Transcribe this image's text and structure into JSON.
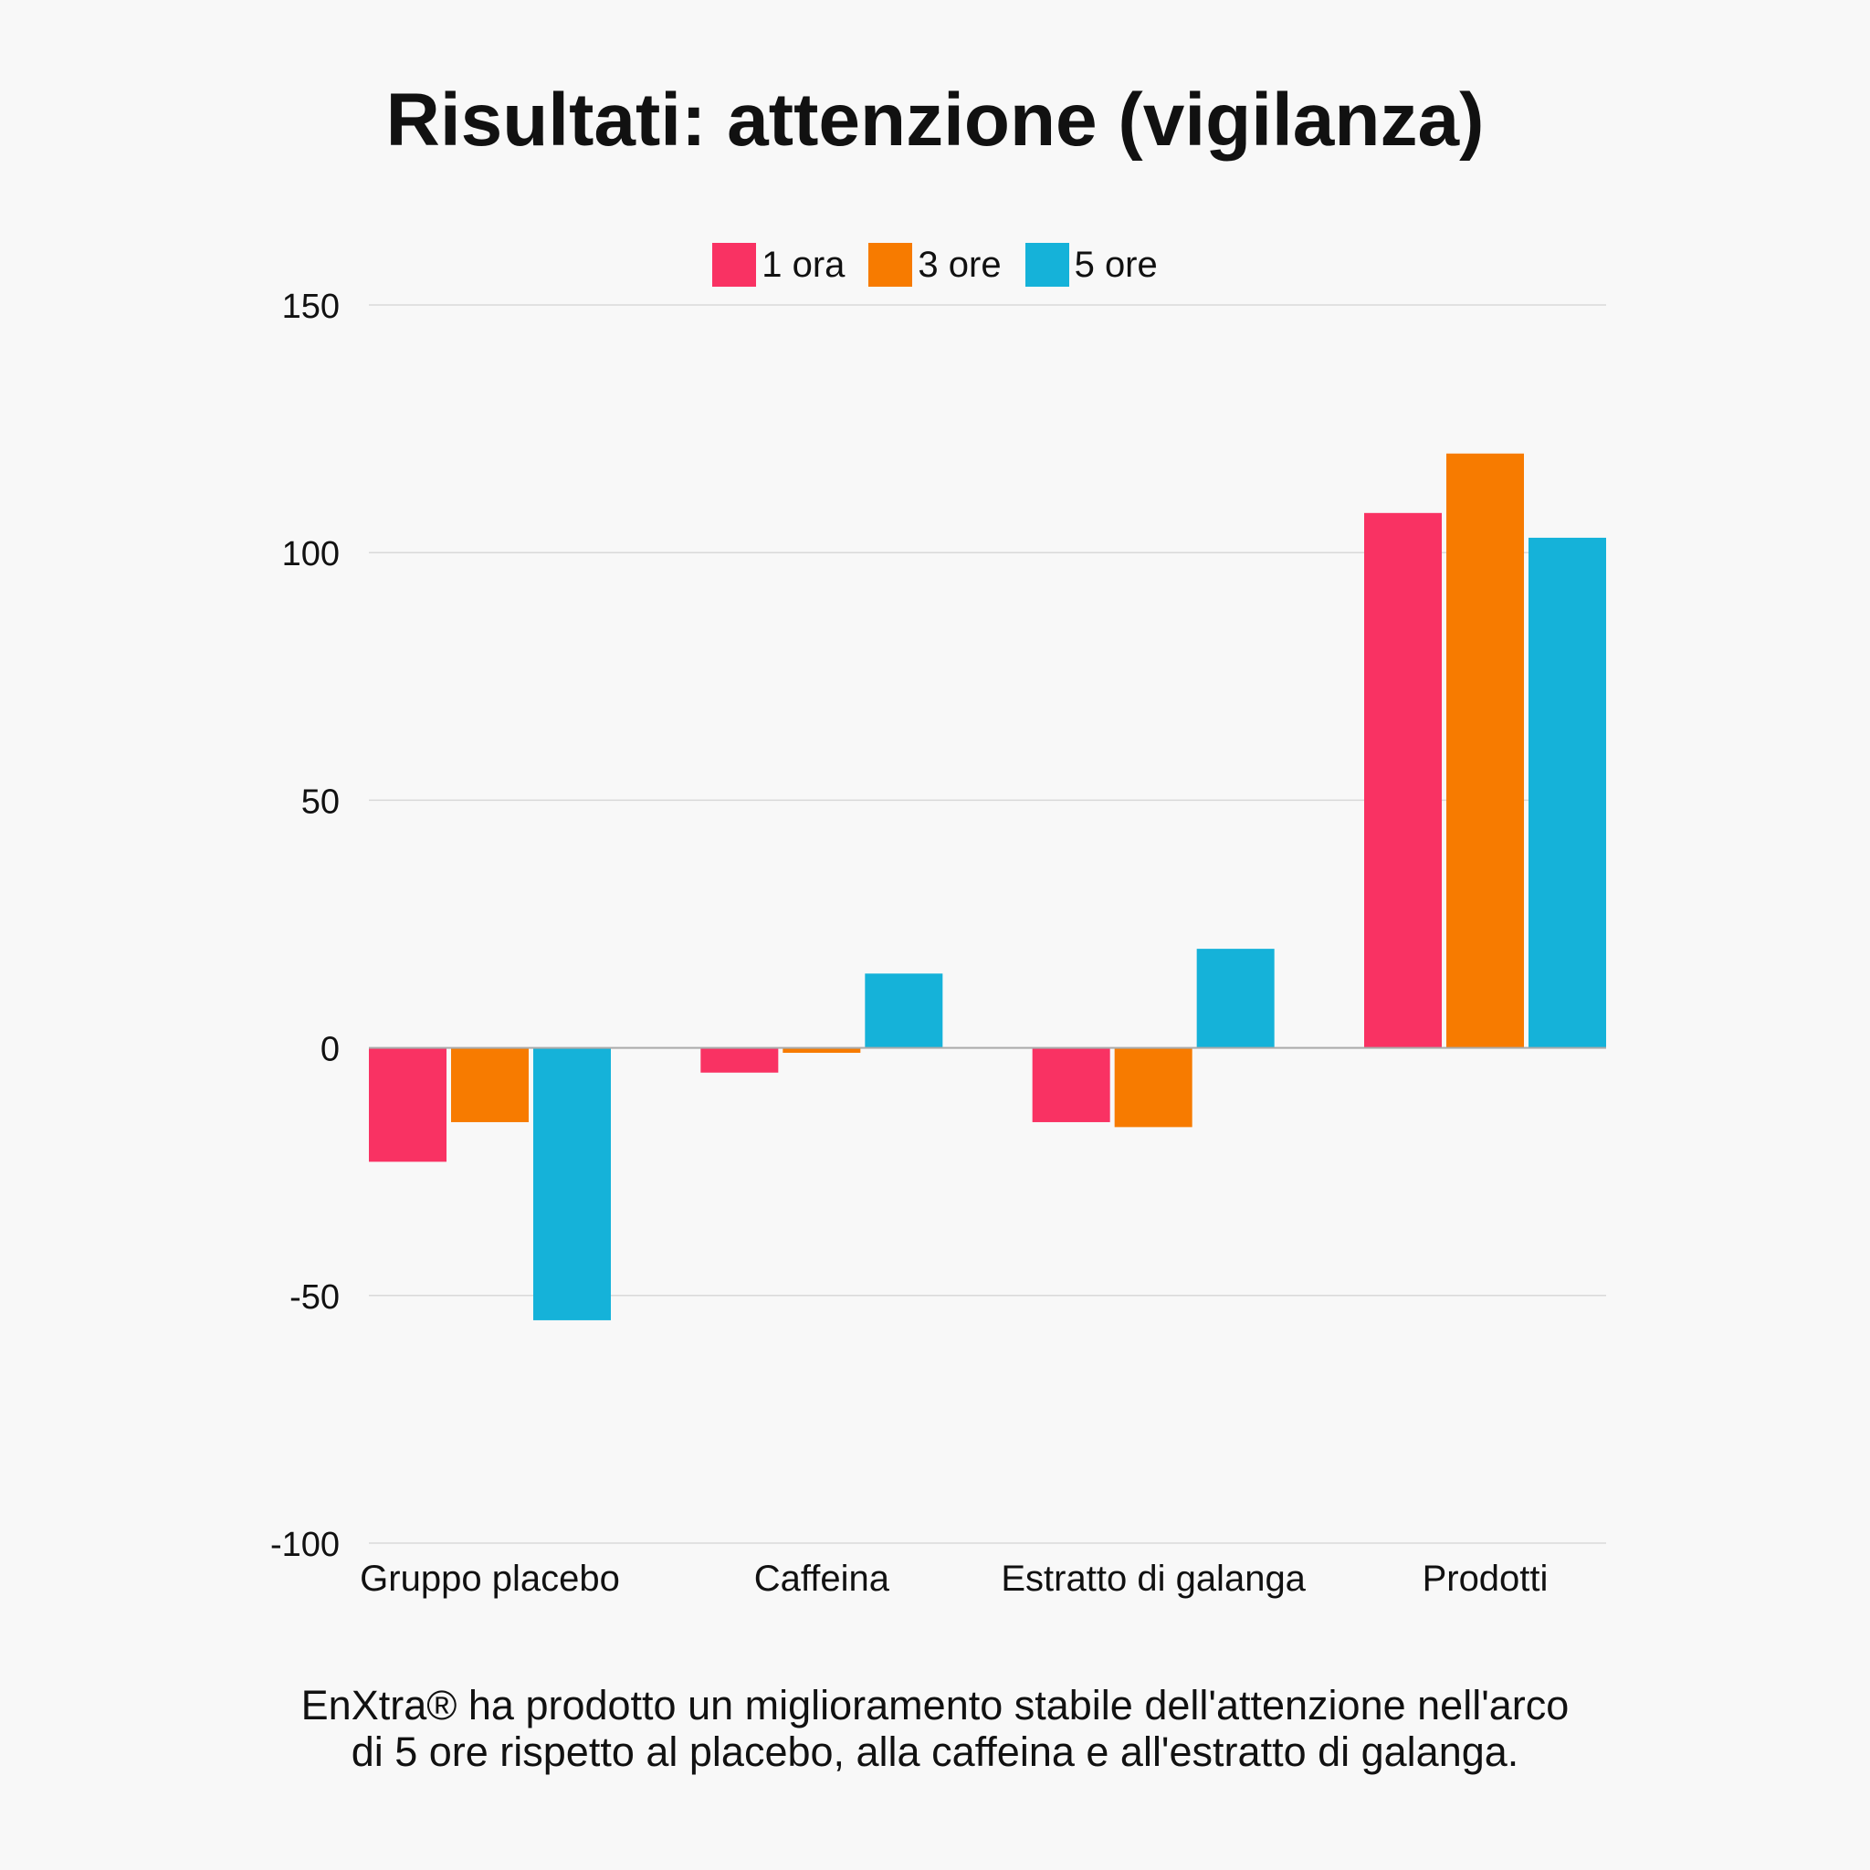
{
  "chart_data": {
    "type": "bar",
    "title": "Risultati: attenzione (vigilanza)",
    "categories": [
      "Gruppo placebo",
      "Caffeina",
      "Estratto di galanga",
      "Prodotti"
    ],
    "series": [
      {
        "name": "1 ora",
        "color": "#f93263",
        "values": [
          -23,
          -5,
          -15,
          108
        ]
      },
      {
        "name": "3 ore",
        "color": "#f77b00",
        "values": [
          -15,
          -1,
          -16,
          120
        ]
      },
      {
        "name": "5 ore",
        "color": "#15b2d9",
        "values": [
          -55,
          15,
          20,
          103
        ]
      }
    ],
    "ylim": [
      -100,
      150
    ],
    "yticks": [
      "150",
      "100",
      "50",
      "0",
      "-50",
      "-100"
    ],
    "grid": true,
    "legend": "top-center",
    "xlabel": "",
    "ylabel": ""
  },
  "footnote": {
    "line1": "EnXtra® ha prodotto un miglioramento stabile dell'attenzione nell'arco",
    "line2": "di 5 ore rispetto al placebo, alla caffeina e all'estratto di galanga."
  }
}
